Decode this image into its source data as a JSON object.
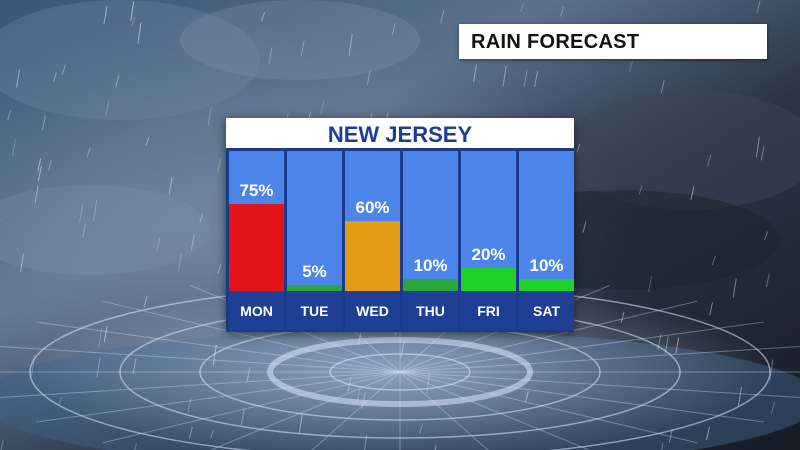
{
  "header": {
    "title": "RAIN FORECAST"
  },
  "chart_data": {
    "type": "bar",
    "title": "NEW JERSEY",
    "categories": [
      "MON",
      "TUE",
      "WED",
      "THU",
      "FRI",
      "SAT"
    ],
    "values": [
      75,
      5,
      60,
      10,
      20,
      10
    ],
    "value_labels": [
      "75%",
      "5%",
      "60%",
      "10%",
      "20%",
      "10%"
    ],
    "ylim": [
      0,
      100
    ],
    "bar_colors": [
      "#e3141a",
      "#2aa83e",
      "#e39a14",
      "#2aa83e",
      "#1ed22c",
      "#1ed22c"
    ],
    "column_background": "#4d84ea",
    "label_background": "#1e3f94"
  }
}
